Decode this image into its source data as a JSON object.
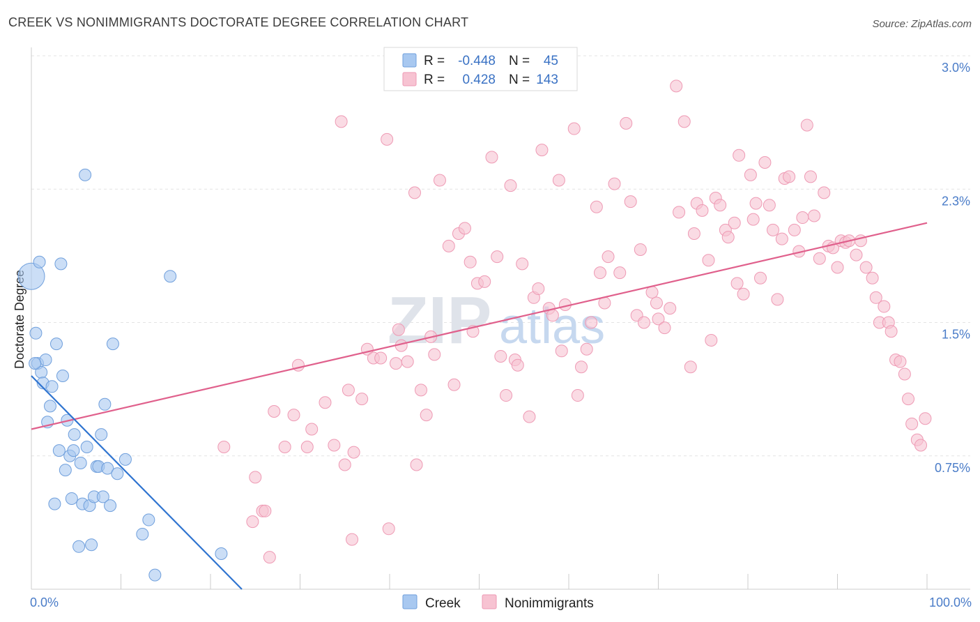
{
  "title": "CREEK VS NONIMMIGRANTS DOCTORATE DEGREE CORRELATION CHART",
  "source": "Source: ZipAtlas.com",
  "watermark": {
    "zip": "ZIP",
    "atlas": "atlas"
  },
  "legend": {
    "rows": [
      {
        "r_label": "R =",
        "r_value": "-0.448",
        "n_label": "N =",
        "n_value": "45",
        "color": "#a8c8f0"
      },
      {
        "r_label": "R =",
        "r_value": "0.428",
        "n_label": "N =",
        "n_value": "143",
        "color": "#f5b8cb"
      }
    ]
  },
  "colors": {
    "creek_fill": "#a8c8f0",
    "creek_stroke": "#6f9fdc",
    "creek_line": "#2f74d0",
    "nonimm_fill": "#f7c3d2",
    "nonimm_stroke": "#ee9ab4",
    "nonimm_line": "#e0608c",
    "grid": "#e3e3e3",
    "axis": "#cccccc"
  },
  "chart_data": {
    "type": "scatter",
    "title": "CREEK VS NONIMMIGRANTS DOCTORATE DEGREE CORRELATION CHART",
    "xlabel": "",
    "ylabel": "Doctorate Degree",
    "xlim": [
      0,
      100
    ],
    "ylim": [
      0,
      3.0
    ],
    "x_tick_labels": [
      "0.0%",
      "100.0%"
    ],
    "y_ticks": [
      0.75,
      1.5,
      2.25,
      3.0
    ],
    "y_tick_labels": [
      "0.75%",
      "1.5%",
      "2.3%",
      "3.0%"
    ],
    "grid": true,
    "legend_position": "top-center",
    "series": [
      {
        "name": "Creek",
        "r": -0.448,
        "n": 45,
        "trend": {
          "x": [
            0,
            23.5
          ],
          "y": [
            1.2,
            0.0
          ]
        },
        "points": [
          {
            "x": 0.0,
            "y": 1.76,
            "big": true
          },
          {
            "x": 0.5,
            "y": 1.44
          },
          {
            "x": 0.7,
            "y": 1.27
          },
          {
            "x": 0.9,
            "y": 1.84
          },
          {
            "x": 1.1,
            "y": 1.22
          },
          {
            "x": 1.3,
            "y": 1.16
          },
          {
            "x": 1.6,
            "y": 1.29
          },
          {
            "x": 1.8,
            "y": 0.94
          },
          {
            "x": 2.1,
            "y": 1.03
          },
          {
            "x": 2.3,
            "y": 1.14
          },
          {
            "x": 2.6,
            "y": 0.48
          },
          {
            "x": 2.8,
            "y": 1.38
          },
          {
            "x": 3.1,
            "y": 0.78
          },
          {
            "x": 3.3,
            "y": 1.83
          },
          {
            "x": 3.5,
            "y": 1.2
          },
          {
            "x": 3.8,
            "y": 0.67
          },
          {
            "x": 4.0,
            "y": 0.95
          },
          {
            "x": 4.3,
            "y": 0.75
          },
          {
            "x": 4.5,
            "y": 0.51
          },
          {
            "x": 4.7,
            "y": 0.78
          },
          {
            "x": 4.8,
            "y": 0.87
          },
          {
            "x": 5.3,
            "y": 0.24
          },
          {
            "x": 5.5,
            "y": 0.71
          },
          {
            "x": 5.7,
            "y": 0.48
          },
          {
            "x": 6.0,
            "y": 2.33
          },
          {
            "x": 6.2,
            "y": 0.8
          },
          {
            "x": 6.5,
            "y": 0.47
          },
          {
            "x": 6.7,
            "y": 0.25
          },
          {
            "x": 7.0,
            "y": 0.52
          },
          {
            "x": 7.3,
            "y": 0.69
          },
          {
            "x": 7.5,
            "y": 0.69
          },
          {
            "x": 7.8,
            "y": 0.87
          },
          {
            "x": 8.0,
            "y": 0.52
          },
          {
            "x": 8.2,
            "y": 1.04
          },
          {
            "x": 8.5,
            "y": 0.68
          },
          {
            "x": 8.8,
            "y": 0.47
          },
          {
            "x": 9.1,
            "y": 1.38
          },
          {
            "x": 9.6,
            "y": 0.65
          },
          {
            "x": 10.5,
            "y": 0.73
          },
          {
            "x": 12.4,
            "y": 0.31
          },
          {
            "x": 13.1,
            "y": 0.39
          },
          {
            "x": 13.8,
            "y": 0.08
          },
          {
            "x": 15.5,
            "y": 1.76
          },
          {
            "x": 21.2,
            "y": 0.2
          },
          {
            "x": 0.4,
            "y": 1.27
          }
        ]
      },
      {
        "name": "Nonimmigrants",
        "r": 0.428,
        "n": 143,
        "trend": {
          "x": [
            0,
            100
          ],
          "y": [
            0.9,
            2.06
          ]
        },
        "points": [
          {
            "x": 21.5,
            "y": 0.8
          },
          {
            "x": 25.0,
            "y": 0.63
          },
          {
            "x": 24.7,
            "y": 0.38
          },
          {
            "x": 25.8,
            "y": 0.44
          },
          {
            "x": 26.1,
            "y": 0.44
          },
          {
            "x": 26.6,
            "y": 0.18
          },
          {
            "x": 27.1,
            "y": 1.0
          },
          {
            "x": 28.3,
            "y": 0.8
          },
          {
            "x": 29.3,
            "y": 0.98
          },
          {
            "x": 29.8,
            "y": 1.26
          },
          {
            "x": 30.8,
            "y": 0.8
          },
          {
            "x": 31.3,
            "y": 0.9
          },
          {
            "x": 32.8,
            "y": 1.05
          },
          {
            "x": 33.8,
            "y": 0.81
          },
          {
            "x": 34.6,
            "y": 2.63
          },
          {
            "x": 35.0,
            "y": 0.7
          },
          {
            "x": 35.4,
            "y": 1.12
          },
          {
            "x": 35.8,
            "y": 0.28
          },
          {
            "x": 36.0,
            "y": 0.77
          },
          {
            "x": 36.9,
            "y": 1.07
          },
          {
            "x": 37.5,
            "y": 1.35
          },
          {
            "x": 38.2,
            "y": 1.3
          },
          {
            "x": 39.0,
            "y": 1.3
          },
          {
            "x": 39.7,
            "y": 2.53
          },
          {
            "x": 39.9,
            "y": 0.34
          },
          {
            "x": 40.7,
            "y": 1.27
          },
          {
            "x": 41.0,
            "y": 1.46
          },
          {
            "x": 41.3,
            "y": 1.37
          },
          {
            "x": 42.0,
            "y": 1.28
          },
          {
            "x": 42.8,
            "y": 2.23
          },
          {
            "x": 43.0,
            "y": 0.7
          },
          {
            "x": 43.5,
            "y": 1.12
          },
          {
            "x": 44.1,
            "y": 0.98
          },
          {
            "x": 44.6,
            "y": 1.42
          },
          {
            "x": 45.0,
            "y": 1.32
          },
          {
            "x": 45.6,
            "y": 2.3
          },
          {
            "x": 46.6,
            "y": 1.93
          },
          {
            "x": 47.2,
            "y": 1.15
          },
          {
            "x": 47.7,
            "y": 2.0
          },
          {
            "x": 48.4,
            "y": 2.03
          },
          {
            "x": 49.0,
            "y": 1.84
          },
          {
            "x": 49.3,
            "y": 1.45
          },
          {
            "x": 49.8,
            "y": 1.72
          },
          {
            "x": 50.6,
            "y": 1.73
          },
          {
            "x": 51.4,
            "y": 2.43
          },
          {
            "x": 52.0,
            "y": 1.87
          },
          {
            "x": 52.4,
            "y": 1.31
          },
          {
            "x": 53.0,
            "y": 1.09
          },
          {
            "x": 53.5,
            "y": 2.27
          },
          {
            "x": 54.0,
            "y": 1.29
          },
          {
            "x": 54.3,
            "y": 1.26
          },
          {
            "x": 54.8,
            "y": 1.83
          },
          {
            "x": 55.6,
            "y": 0.97
          },
          {
            "x": 56.1,
            "y": 1.64
          },
          {
            "x": 56.6,
            "y": 1.69
          },
          {
            "x": 57.0,
            "y": 2.47
          },
          {
            "x": 57.8,
            "y": 1.58
          },
          {
            "x": 58.2,
            "y": 1.54
          },
          {
            "x": 58.9,
            "y": 2.3
          },
          {
            "x": 59.2,
            "y": 1.34
          },
          {
            "x": 59.6,
            "y": 1.6
          },
          {
            "x": 60.6,
            "y": 2.59
          },
          {
            "x": 61.0,
            "y": 1.09
          },
          {
            "x": 61.4,
            "y": 1.25
          },
          {
            "x": 62.0,
            "y": 1.35
          },
          {
            "x": 62.5,
            "y": 1.5
          },
          {
            "x": 63.1,
            "y": 2.15
          },
          {
            "x": 63.5,
            "y": 1.78
          },
          {
            "x": 64.0,
            "y": 1.61
          },
          {
            "x": 64.4,
            "y": 1.87
          },
          {
            "x": 65.1,
            "y": 2.28
          },
          {
            "x": 65.7,
            "y": 1.78
          },
          {
            "x": 66.4,
            "y": 2.62
          },
          {
            "x": 66.9,
            "y": 2.18
          },
          {
            "x": 67.6,
            "y": 1.54
          },
          {
            "x": 68.0,
            "y": 1.91
          },
          {
            "x": 68.4,
            "y": 1.5
          },
          {
            "x": 69.3,
            "y": 1.67
          },
          {
            "x": 69.8,
            "y": 1.61
          },
          {
            "x": 70.0,
            "y": 1.52
          },
          {
            "x": 70.7,
            "y": 1.47
          },
          {
            "x": 71.3,
            "y": 1.58
          },
          {
            "x": 72.0,
            "y": 2.83
          },
          {
            "x": 72.3,
            "y": 2.12
          },
          {
            "x": 72.9,
            "y": 2.63
          },
          {
            "x": 73.6,
            "y": 1.25
          },
          {
            "x": 74.0,
            "y": 2.0
          },
          {
            "x": 74.3,
            "y": 2.17
          },
          {
            "x": 74.9,
            "y": 2.13
          },
          {
            "x": 75.6,
            "y": 1.85
          },
          {
            "x": 75.9,
            "y": 1.4
          },
          {
            "x": 76.4,
            "y": 2.2
          },
          {
            "x": 76.9,
            "y": 2.16
          },
          {
            "x": 77.5,
            "y": 2.02
          },
          {
            "x": 77.8,
            "y": 1.98
          },
          {
            "x": 78.5,
            "y": 2.06
          },
          {
            "x": 78.8,
            "y": 1.72
          },
          {
            "x": 79.0,
            "y": 2.44
          },
          {
            "x": 79.5,
            "y": 1.66
          },
          {
            "x": 80.3,
            "y": 2.33
          },
          {
            "x": 80.6,
            "y": 2.08
          },
          {
            "x": 80.9,
            "y": 2.17
          },
          {
            "x": 81.4,
            "y": 1.75
          },
          {
            "x": 81.9,
            "y": 2.4
          },
          {
            "x": 82.4,
            "y": 2.16
          },
          {
            "x": 82.8,
            "y": 2.02
          },
          {
            "x": 83.3,
            "y": 1.63
          },
          {
            "x": 83.8,
            "y": 1.97
          },
          {
            "x": 84.1,
            "y": 2.31
          },
          {
            "x": 84.6,
            "y": 2.32
          },
          {
            "x": 85.2,
            "y": 2.02
          },
          {
            "x": 85.7,
            "y": 1.9
          },
          {
            "x": 86.1,
            "y": 2.09
          },
          {
            "x": 86.6,
            "y": 2.61
          },
          {
            "x": 87.0,
            "y": 2.32
          },
          {
            "x": 87.4,
            "y": 2.1
          },
          {
            "x": 88.0,
            "y": 1.86
          },
          {
            "x": 88.5,
            "y": 2.23
          },
          {
            "x": 89.0,
            "y": 1.93
          },
          {
            "x": 89.5,
            "y": 1.92
          },
          {
            "x": 90.0,
            "y": 1.81
          },
          {
            "x": 90.4,
            "y": 1.96
          },
          {
            "x": 90.9,
            "y": 1.95
          },
          {
            "x": 91.3,
            "y": 1.96
          },
          {
            "x": 92.1,
            "y": 1.88
          },
          {
            "x": 92.6,
            "y": 1.96
          },
          {
            "x": 93.2,
            "y": 1.81
          },
          {
            "x": 93.9,
            "y": 1.75
          },
          {
            "x": 94.3,
            "y": 1.64
          },
          {
            "x": 94.7,
            "y": 1.5
          },
          {
            "x": 95.2,
            "y": 1.59
          },
          {
            "x": 95.7,
            "y": 1.5
          },
          {
            "x": 96.0,
            "y": 1.45
          },
          {
            "x": 96.5,
            "y": 1.29
          },
          {
            "x": 97.0,
            "y": 1.28
          },
          {
            "x": 97.5,
            "y": 1.21
          },
          {
            "x": 97.9,
            "y": 1.07
          },
          {
            "x": 98.3,
            "y": 0.93
          },
          {
            "x": 98.9,
            "y": 0.84
          },
          {
            "x": 99.3,
            "y": 0.81
          },
          {
            "x": 99.8,
            "y": 0.96
          }
        ]
      }
    ]
  }
}
